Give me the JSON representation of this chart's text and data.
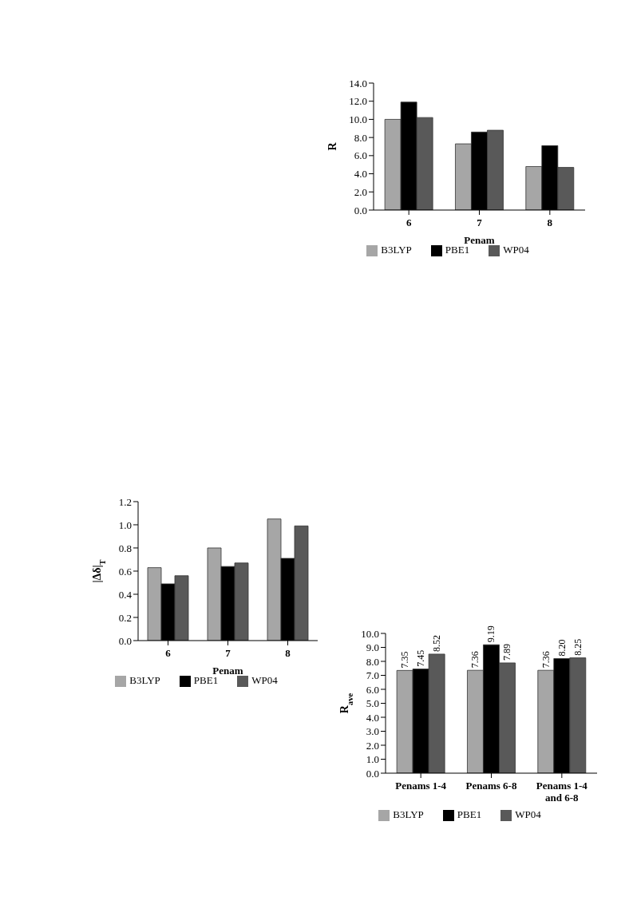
{
  "chart_data": [
    {
      "type": "bar",
      "xlabel": "Penam",
      "ylabel": "|Δδ|$_{T}$",
      "categories": [
        "6",
        "7",
        "8"
      ],
      "series": [
        {
          "name": "B3LYP",
          "color": "#a6a6a6",
          "values": [
            0.63,
            0.8,
            1.05
          ]
        },
        {
          "name": "PBE1",
          "color": "#000000",
          "values": [
            0.49,
            0.64,
            0.71
          ]
        },
        {
          "name": "WP04",
          "color": "#595959",
          "values": [
            0.56,
            0.67,
            0.99
          ]
        }
      ],
      "ylim": [
        0,
        1.2
      ],
      "yticks": [
        {
          "value": 0,
          "label": "0.0"
        },
        {
          "value": 0.2,
          "label": "0.2"
        },
        {
          "value": 0.4,
          "label": "0.4"
        },
        {
          "value": 0.6,
          "label": "0.6"
        },
        {
          "value": 0.8,
          "label": "0.8"
        },
        {
          "value": 1,
          "label": "1.0"
        },
        {
          "value": 1.2,
          "label": "1.2"
        }
      ],
      "legend": "bottom"
    },
    {
      "type": "bar",
      "xlabel": "Penam",
      "ylabel": "R",
      "categories": [
        "6",
        "7",
        "8"
      ],
      "series": [
        {
          "name": "B3LYP",
          "color": "#a6a6a6",
          "values": [
            10.0,
            7.3,
            4.8
          ]
        },
        {
          "name": "PBE1",
          "color": "#000000",
          "values": [
            11.9,
            8.6,
            7.1
          ]
        },
        {
          "name": "WP04",
          "color": "#595959",
          "values": [
            10.2,
            8.8,
            4.7
          ]
        }
      ],
      "ylim": [
        0,
        14
      ],
      "yticks": [
        {
          "value": 0,
          "label": "0.0"
        },
        {
          "value": 2,
          "label": "2.0"
        },
        {
          "value": 4,
          "label": "4.0"
        },
        {
          "value": 6,
          "label": "6.0"
        },
        {
          "value": 8,
          "label": "8.0"
        },
        {
          "value": 10,
          "label": "10.0"
        },
        {
          "value": 12,
          "label": "12.0"
        },
        {
          "value": 14,
          "label": "14.0"
        }
      ],
      "legend": "bottom"
    },
    {
      "type": "bar",
      "ylabel": "R$_{ave}$",
      "categories": [
        "Penams 1-4",
        "Penams 6-8",
        "Penams 1-4 and 6-8"
      ],
      "series": [
        {
          "name": "B3LYP",
          "color": "#a6a6a6",
          "values": [
            7.35,
            7.36,
            7.36
          ],
          "value_labels": [
            "7.35",
            "7.36",
            "7.36"
          ]
        },
        {
          "name": "PBE1",
          "color": "#000000",
          "values": [
            7.45,
            9.19,
            8.2
          ],
          "value_labels": [
            "7.45",
            "9.19",
            "8.20"
          ]
        },
        {
          "name": "WP04",
          "color": "#595959",
          "values": [
            8.52,
            7.89,
            8.25
          ],
          "value_labels": [
            "8.52",
            "7.89",
            "8.25"
          ]
        }
      ],
      "ylim": [
        0,
        10
      ],
      "yticks": [
        {
          "value": 0,
          "label": "0.0"
        },
        {
          "value": 1,
          "label": "1.0"
        },
        {
          "value": 2,
          "label": "2.0"
        },
        {
          "value": 3,
          "label": "3.0"
        },
        {
          "value": 4,
          "label": "4.0"
        },
        {
          "value": 5,
          "label": "5.0"
        },
        {
          "value": 6,
          "label": "6.0"
        },
        {
          "value": 7,
          "label": "7.0"
        },
        {
          "value": 8,
          "label": "8.0"
        },
        {
          "value": 9,
          "label": "9.0"
        },
        {
          "value": 10,
          "label": "10.0"
        }
      ],
      "legend": "bottom"
    }
  ]
}
